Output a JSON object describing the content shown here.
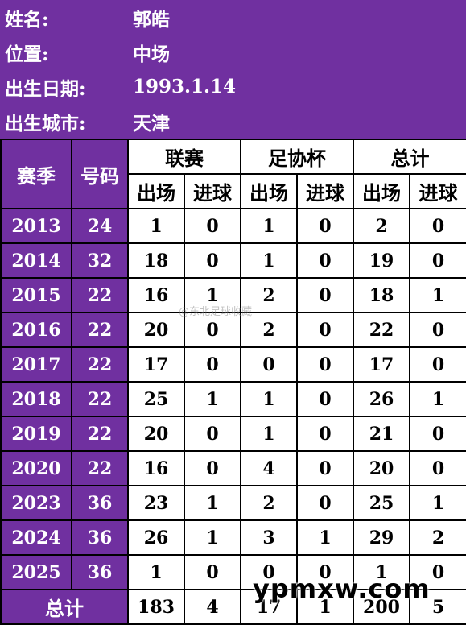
{
  "profile": {
    "name_label": "姓名:",
    "name_value": "郭皓",
    "position_label": "位置:",
    "position_value": "中场",
    "birthdate_label": "出生日期:",
    "birthdate_value": "1993.1.14",
    "birthplace_label": "出生城市:",
    "birthplace_value": "天津"
  },
  "table": {
    "season_header": "赛季",
    "number_header": "号码",
    "groups": [
      "联赛",
      "足协杯",
      "总计"
    ],
    "sub_headers": [
      "出场",
      "进球",
      "出场",
      "进球",
      "出场",
      "进球"
    ],
    "rows": [
      {
        "season": "2013",
        "number": "24",
        "cells": [
          "1",
          "0",
          "1",
          "0",
          "2",
          "0"
        ]
      },
      {
        "season": "2014",
        "number": "32",
        "cells": [
          "18",
          "0",
          "1",
          "0",
          "19",
          "0"
        ]
      },
      {
        "season": "2015",
        "number": "22",
        "cells": [
          "16",
          "1",
          "2",
          "0",
          "18",
          "1"
        ]
      },
      {
        "season": "2016",
        "number": "22",
        "cells": [
          "20",
          "0",
          "2",
          "0",
          "22",
          "0"
        ]
      },
      {
        "season": "2017",
        "number": "22",
        "cells": [
          "17",
          "0",
          "0",
          "0",
          "17",
          "0"
        ]
      },
      {
        "season": "2018",
        "number": "22",
        "cells": [
          "25",
          "1",
          "1",
          "0",
          "26",
          "1"
        ]
      },
      {
        "season": "2019",
        "number": "22",
        "cells": [
          "20",
          "0",
          "1",
          "0",
          "21",
          "0"
        ]
      },
      {
        "season": "2020",
        "number": "22",
        "cells": [
          "16",
          "0",
          "4",
          "0",
          "20",
          "0"
        ]
      },
      {
        "season": "2023",
        "number": "36",
        "cells": [
          "23",
          "1",
          "2",
          "0",
          "25",
          "1"
        ]
      },
      {
        "season": "2024",
        "number": "36",
        "cells": [
          "26",
          "1",
          "3",
          "1",
          "29",
          "2"
        ]
      },
      {
        "season": "2025",
        "number": "36",
        "cells": [
          "1",
          "0",
          "0",
          "0",
          "1",
          "0"
        ]
      }
    ],
    "total_label": "总计",
    "total_cells": [
      "183",
      "4",
      "17",
      "1",
      "200",
      "5"
    ]
  },
  "watermarks": {
    "weibo": "@东北足球收藏",
    "site": "ypmxw.com"
  },
  "colors": {
    "purple": "#7030a0",
    "white": "#ffffff",
    "text": "#000000"
  }
}
